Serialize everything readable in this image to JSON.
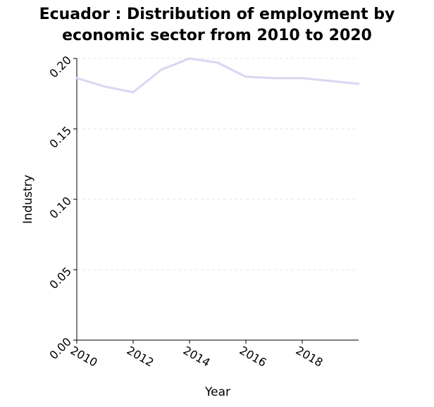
{
  "chart_data": {
    "type": "line",
    "title_line1": "Ecuador : Distribution of employment by",
    "title_line2": "economic sector from 2010 to 2020",
    "xlabel": "Year",
    "ylabel": "Industry",
    "xlim": [
      2010,
      2020
    ],
    "ylim": [
      0,
      0.2
    ],
    "xticks": [
      2010,
      2012,
      2014,
      2016,
      2018
    ],
    "xtick_labels": [
      "2010",
      "2012",
      "2014",
      "2016",
      "2018"
    ],
    "yticks": [
      0,
      0.05,
      0.1,
      0.15,
      0.2
    ],
    "ytick_labels": [
      "0.00",
      "0.05",
      "0.10",
      "0.15",
      "0.20"
    ],
    "grid": "horizontal-dashed",
    "series": [
      {
        "color": "#d9d7f1",
        "x": [
          2010,
          2011,
          2012,
          2013,
          2014,
          2015,
          2016,
          2017,
          2018,
          2019,
          2020
        ],
        "values": [
          0.186,
          0.18,
          0.176,
          0.192,
          0.2,
          0.197,
          0.187,
          0.186,
          0.186,
          0.184,
          0.182
        ]
      }
    ]
  }
}
